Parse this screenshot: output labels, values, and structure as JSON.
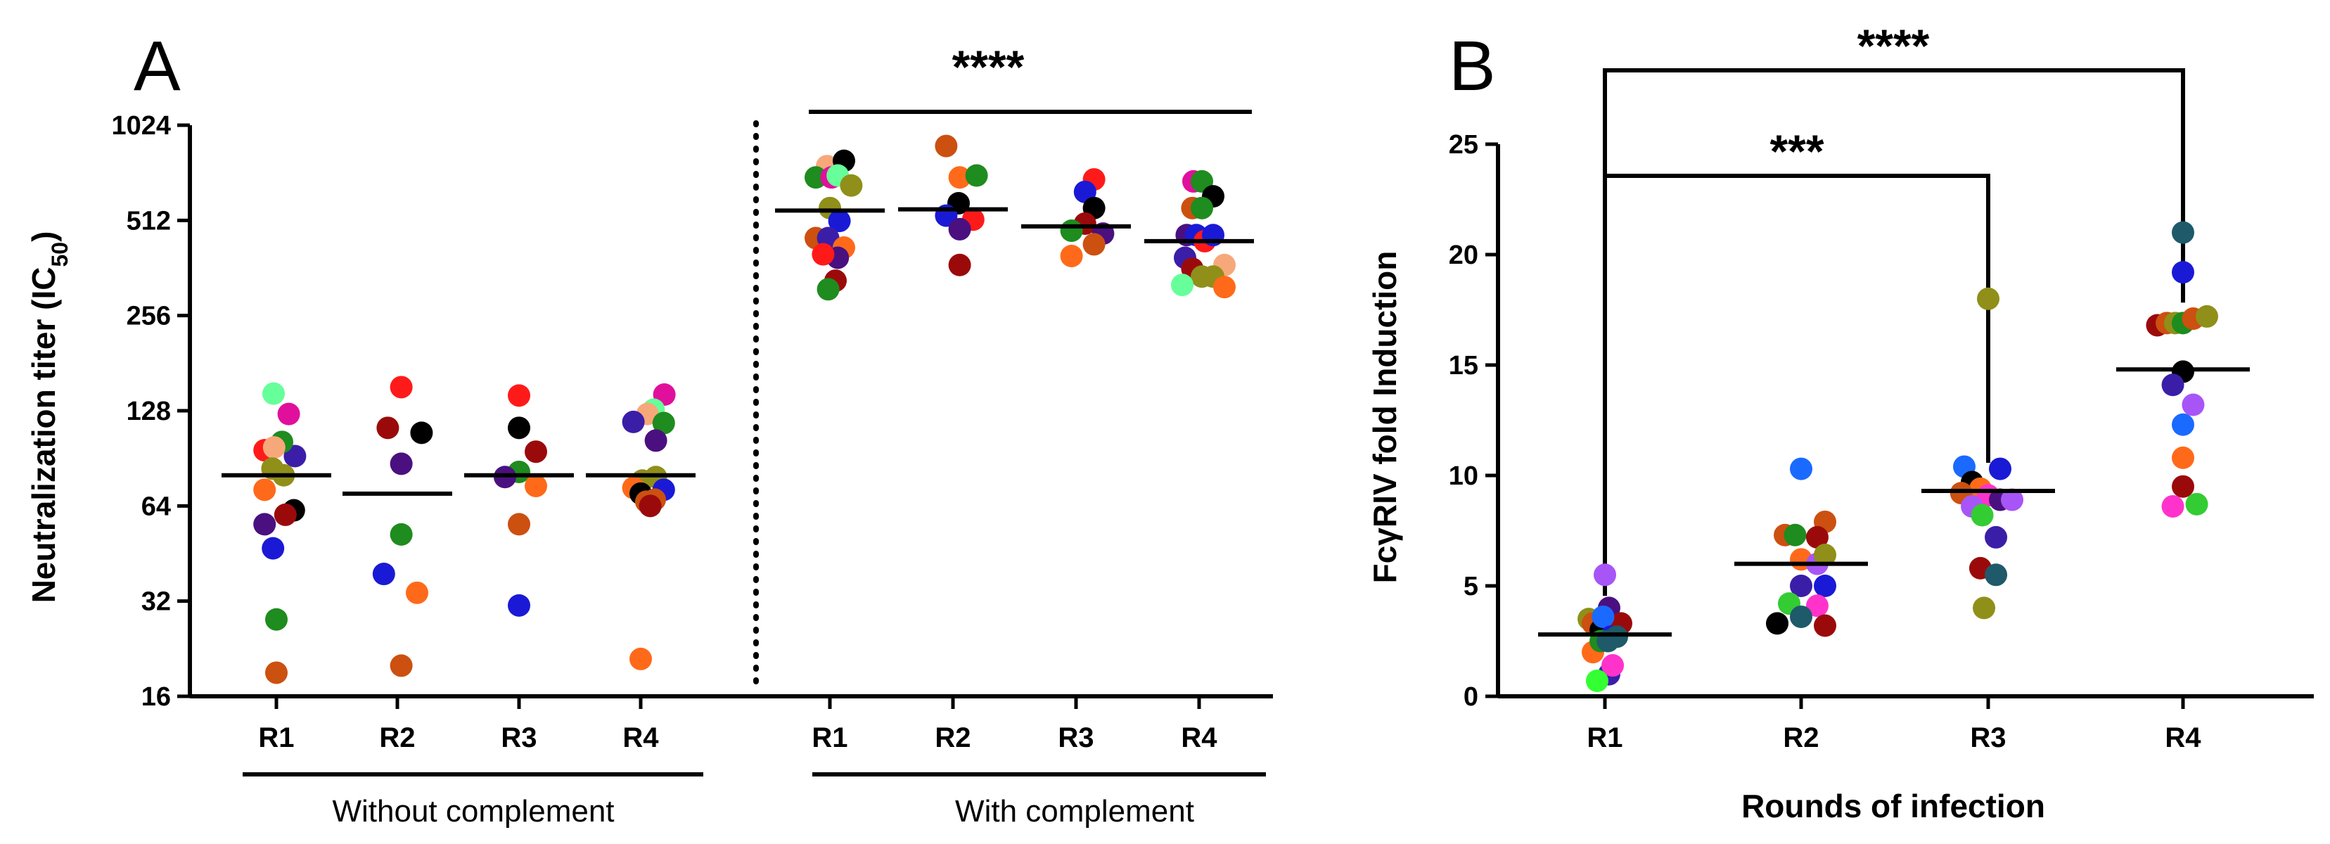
{
  "panels": {
    "a": {
      "letter": "A",
      "ylabel_main": "Neutralization titer  (IC",
      "ylabel_sub": "50",
      "ylabel_end": ")",
      "group_labels": [
        "Without complement",
        "With complement"
      ],
      "significance": "****"
    },
    "b": {
      "letter": "B",
      "ylabel": "FcγRIV fold Induction",
      "xlabel": "Rounds of infection",
      "significance": [
        "***",
        "****"
      ]
    }
  },
  "chart_data": [
    {
      "type": "scatter",
      "panel": "A",
      "scale": "log2",
      "ylim": [
        16,
        1024
      ],
      "yticks": [
        16,
        32,
        64,
        128,
        256,
        512,
        1024
      ],
      "ylabel": "Neutralization titer (IC50)",
      "categories": [
        "R1",
        "R2",
        "R3",
        "R4",
        "R1",
        "R2",
        "R3",
        "R4"
      ],
      "groups": [
        {
          "label": "Without complement",
          "categories": [
            0,
            1,
            2,
            3
          ]
        },
        {
          "label": "With complement",
          "categories": [
            4,
            5,
            6,
            7
          ]
        }
      ],
      "medians": [
        80,
        70,
        80,
        80,
        550,
        555,
        490,
        440
      ],
      "points": [
        [
          {
            "dx": -0.05,
            "y": 145,
            "color": "#66ff99"
          },
          {
            "dx": 0.22,
            "y": 125,
            "color": "#e0109c"
          },
          {
            "dx": 0.33,
            "y": 92,
            "color": "#3b1ea8"
          },
          {
            "dx": 0.1,
            "y": 102,
            "color": "#1e8c1e"
          },
          {
            "dx": -0.21,
            "y": 96,
            "color": "#ff1a1a"
          },
          {
            "dx": -0.04,
            "y": 98,
            "color": "#f7a87a"
          },
          {
            "dx": -0.07,
            "y": 84,
            "color": "#8f8f1a"
          },
          {
            "dx": 0.13,
            "y": 80,
            "color": "#8f8f1a"
          },
          {
            "dx": -0.21,
            "y": 72,
            "color": "#ff6a1a"
          },
          {
            "dx": 0.31,
            "y": 62,
            "color": "#000000"
          },
          {
            "dx": 0.16,
            "y": 60,
            "color": "#9b0a0a"
          },
          {
            "dx": -0.21,
            "y": 56,
            "color": "#4a1080"
          },
          {
            "dx": -0.06,
            "y": 47,
            "color": "#1a1ad6"
          },
          {
            "dx": 0.0,
            "y": 28,
            "color": "#1e8c1e"
          },
          {
            "dx": 0.0,
            "y": 19,
            "color": "#cc5010"
          }
        ],
        [
          {
            "dx": 0.07,
            "y": 152,
            "color": "#ff1a1a"
          },
          {
            "dx": -0.17,
            "y": 113,
            "color": "#9b0a0a"
          },
          {
            "dx": 0.43,
            "y": 109,
            "color": "#000000"
          },
          {
            "dx": 0.07,
            "y": 87,
            "color": "#4a1080"
          },
          {
            "dx": 0.07,
            "y": 52,
            "color": "#1e8c1e"
          },
          {
            "dx": -0.24,
            "y": 39,
            "color": "#1a1ad6"
          },
          {
            "dx": 0.35,
            "y": 34,
            "color": "#ff6a1a"
          },
          {
            "dx": 0.07,
            "y": 20,
            "color": "#cc5010"
          }
        ],
        [
          {
            "dx": 0.0,
            "y": 143,
            "color": "#ff1a1a"
          },
          {
            "dx": 0.0,
            "y": 113,
            "color": "#000000"
          },
          {
            "dx": 0.3,
            "y": 95,
            "color": "#9b0a0a"
          },
          {
            "dx": 0.0,
            "y": 82,
            "color": "#1e8c1e"
          },
          {
            "dx": -0.25,
            "y": 79,
            "color": "#4a1080"
          },
          {
            "dx": 0.3,
            "y": 74,
            "color": "#ff6a1a"
          },
          {
            "dx": 0.0,
            "y": 56,
            "color": "#cc5010"
          },
          {
            "dx": 0.0,
            "y": 31,
            "color": "#1a1ad6"
          }
        ],
        [
          {
            "dx": 0.42,
            "y": 144,
            "color": "#e0109c"
          },
          {
            "dx": 0.23,
            "y": 129,
            "color": "#66ff99"
          },
          {
            "dx": 0.12,
            "y": 125,
            "color": "#f7a87a"
          },
          {
            "dx": -0.13,
            "y": 118,
            "color": "#3b1ea8"
          },
          {
            "dx": 0.41,
            "y": 117,
            "color": "#1e8c1e"
          },
          {
            "dx": 0.27,
            "y": 103,
            "color": "#4a1080"
          },
          {
            "dx": 0.03,
            "y": 77,
            "color": "#8f8f1a"
          },
          {
            "dx": 0.27,
            "y": 79,
            "color": "#8f8f1a"
          },
          {
            "dx": -0.13,
            "y": 73,
            "color": "#ff6a1a"
          },
          {
            "dx": 0.41,
            "y": 72,
            "color": "#1a1ad6"
          },
          {
            "dx": 0.0,
            "y": 70,
            "color": "#000000"
          },
          {
            "dx": 0.1,
            "y": 66,
            "color": "#cc5010"
          },
          {
            "dx": 0.25,
            "y": 67,
            "color": "#cc5010"
          },
          {
            "dx": 0.17,
            "y": 64,
            "color": "#9b0a0a"
          },
          {
            "dx": 0.0,
            "y": 21,
            "color": "#ff6a1a"
          }
        ],
        [
          {
            "dx": -0.05,
            "y": 760,
            "color": "#f7a87a"
          },
          {
            "dx": 0.25,
            "y": 790,
            "color": "#000000"
          },
          {
            "dx": -0.25,
            "y": 700,
            "color": "#1e8c1e"
          },
          {
            "dx": 0.03,
            "y": 700,
            "color": "#e0109c"
          },
          {
            "dx": 0.14,
            "y": 710,
            "color": "#66ff99"
          },
          {
            "dx": 0.38,
            "y": 660,
            "color": "#8f8f1a"
          },
          {
            "dx": 0.0,
            "y": 560,
            "color": "#8f8f1a"
          },
          {
            "dx": 0.17,
            "y": 510,
            "color": "#1a1ad6"
          },
          {
            "dx": -0.25,
            "y": 450,
            "color": "#cc5010"
          },
          {
            "dx": -0.03,
            "y": 450,
            "color": "#3b1ea8"
          },
          {
            "dx": 0.25,
            "y": 420,
            "color": "#ff6a1a"
          },
          {
            "dx": 0.14,
            "y": 390,
            "color": "#4a1080"
          },
          {
            "dx": -0.12,
            "y": 400,
            "color": "#ff1a1a"
          },
          {
            "dx": 0.1,
            "y": 330,
            "color": "#9b0a0a"
          },
          {
            "dx": -0.03,
            "y": 310,
            "color": "#1e8c1e"
          }
        ],
        [
          {
            "dx": -0.12,
            "y": 880,
            "color": "#cc5010"
          },
          {
            "dx": 0.12,
            "y": 700,
            "color": "#ff6a1a"
          },
          {
            "dx": 0.42,
            "y": 710,
            "color": "#1e8c1e"
          },
          {
            "dx": 0.1,
            "y": 580,
            "color": "#000000"
          },
          {
            "dx": -0.12,
            "y": 530,
            "color": "#1a1ad6"
          },
          {
            "dx": 0.36,
            "y": 515,
            "color": "#ff1a1a"
          },
          {
            "dx": 0.12,
            "y": 480,
            "color": "#4a1080"
          },
          {
            "dx": 0.12,
            "y": 370,
            "color": "#9b0a0a"
          }
        ],
        [
          {
            "dx": 0.32,
            "y": 690,
            "color": "#ff1a1a"
          },
          {
            "dx": 0.16,
            "y": 630,
            "color": "#1a1ad6"
          },
          {
            "dx": 0.32,
            "y": 560,
            "color": "#000000"
          },
          {
            "dx": 0.16,
            "y": 500,
            "color": "#9b0a0a"
          },
          {
            "dx": -0.08,
            "y": 475,
            "color": "#1e8c1e"
          },
          {
            "dx": 0.48,
            "y": 465,
            "color": "#4a1080"
          },
          {
            "dx": 0.32,
            "y": 430,
            "color": "#cc5010"
          },
          {
            "dx": -0.08,
            "y": 395,
            "color": "#ff6a1a"
          }
        ],
        [
          {
            "dx": -0.1,
            "y": 680,
            "color": "#e0109c"
          },
          {
            "dx": 0.05,
            "y": 680,
            "color": "#1e8c1e"
          },
          {
            "dx": 0.25,
            "y": 610,
            "color": "#000000"
          },
          {
            "dx": -0.12,
            "y": 560,
            "color": "#cc5010"
          },
          {
            "dx": 0.05,
            "y": 560,
            "color": "#1e8c1e"
          },
          {
            "dx": -0.22,
            "y": 460,
            "color": "#4a1080"
          },
          {
            "dx": -0.05,
            "y": 460,
            "color": "#1a1ad6"
          },
          {
            "dx": 0.1,
            "y": 440,
            "color": "#ff1a1a"
          },
          {
            "dx": 0.25,
            "y": 460,
            "color": "#1a1ad6"
          },
          {
            "dx": -0.25,
            "y": 390,
            "color": "#3b1ea8"
          },
          {
            "dx": -0.12,
            "y": 360,
            "color": "#9b0a0a"
          },
          {
            "dx": 0.45,
            "y": 370,
            "color": "#f7a87a"
          },
          {
            "dx": 0.05,
            "y": 340,
            "color": "#8f8f1a"
          },
          {
            "dx": 0.25,
            "y": 340,
            "color": "#8f8f1a"
          },
          {
            "dx": -0.3,
            "y": 320,
            "color": "#66ff99"
          },
          {
            "dx": 0.45,
            "y": 315,
            "color": "#ff6a1a"
          }
        ]
      ]
    },
    {
      "type": "scatter",
      "panel": "B",
      "ylim": [
        0,
        25
      ],
      "yticks": [
        0,
        5,
        10,
        15,
        20,
        25
      ],
      "xlabel": "Rounds of infection",
      "ylabel": "FcγRIV fold Induction",
      "categories": [
        "R1",
        "R2",
        "R3",
        "R4"
      ],
      "medians": [
        2.8,
        6.0,
        9.3,
        14.8
      ],
      "comparisons": [
        {
          "from": "R1",
          "to": "R3",
          "label": "***"
        },
        {
          "from": "R1",
          "to": "R4",
          "label": "****"
        }
      ],
      "points": [
        [
          {
            "dx": 0.0,
            "y": 5.5,
            "color": "#a855f7"
          },
          {
            "dx": -0.27,
            "y": 3.5,
            "color": "#8f8f1a"
          },
          {
            "dx": -0.2,
            "y": 3.3,
            "color": "#cc5010"
          },
          {
            "dx": -0.07,
            "y": 3.0,
            "color": "#000000"
          },
          {
            "dx": 0.07,
            "y": 4.0,
            "color": "#4a1080"
          },
          {
            "dx": 0.27,
            "y": 3.3,
            "color": "#9b0a0a"
          },
          {
            "dx": -0.03,
            "y": 3.6,
            "color": "#1a6aff"
          },
          {
            "dx": 0.1,
            "y": 2.7,
            "color": "#1a1ad6"
          },
          {
            "dx": -0.2,
            "y": 2.0,
            "color": "#ff6a1a"
          },
          {
            "dx": -0.07,
            "y": 2.5,
            "color": "#1e8c1e"
          },
          {
            "dx": 0.05,
            "y": 2.5,
            "color": "#1e5a6a"
          },
          {
            "dx": 0.2,
            "y": 2.7,
            "color": "#1e5a6a"
          },
          {
            "dx": 0.07,
            "y": 1.0,
            "color": "#3b1ea8"
          },
          {
            "dx": 0.13,
            "y": 1.4,
            "color": "#ff33cc"
          },
          {
            "dx": -0.13,
            "y": 0.7,
            "color": "#33ff33"
          }
        ],
        [
          {
            "dx": 0.0,
            "y": 10.3,
            "color": "#1a6aff"
          },
          {
            "dx": 0.4,
            "y": 7.9,
            "color": "#cc5010"
          },
          {
            "dx": -0.27,
            "y": 7.3,
            "color": "#cc5010"
          },
          {
            "dx": -0.1,
            "y": 7.3,
            "color": "#1e8c1e"
          },
          {
            "dx": 0.27,
            "y": 7.2,
            "color": "#9b0a0a"
          },
          {
            "dx": 0.0,
            "y": 6.2,
            "color": "#ff6a1a"
          },
          {
            "dx": 0.27,
            "y": 6.0,
            "color": "#a855f7"
          },
          {
            "dx": 0.4,
            "y": 6.4,
            "color": "#8f8f1a"
          },
          {
            "dx": 0.0,
            "y": 5.0,
            "color": "#3b1ea8"
          },
          {
            "dx": 0.4,
            "y": 5.0,
            "color": "#1a1ad6"
          },
          {
            "dx": -0.2,
            "y": 4.2,
            "color": "#33cc33"
          },
          {
            "dx": 0.27,
            "y": 4.1,
            "color": "#ff33cc"
          },
          {
            "dx": 0.0,
            "y": 3.6,
            "color": "#1e5a6a"
          },
          {
            "dx": -0.4,
            "y": 3.3,
            "color": "#000000"
          },
          {
            "dx": 0.4,
            "y": 3.2,
            "color": "#9b0a0a"
          }
        ],
        [
          {
            "dx": 0.0,
            "y": 18.0,
            "color": "#8f8f1a"
          },
          {
            "dx": -0.4,
            "y": 10.4,
            "color": "#1a6aff"
          },
          {
            "dx": 0.2,
            "y": 10.3,
            "color": "#1a1ad6"
          },
          {
            "dx": -0.27,
            "y": 9.7,
            "color": "#000000"
          },
          {
            "dx": -0.13,
            "y": 9.4,
            "color": "#ff6a1a"
          },
          {
            "dx": -0.45,
            "y": 9.2,
            "color": "#cc5010"
          },
          {
            "dx": 0.0,
            "y": 9.1,
            "color": "#ff33cc"
          },
          {
            "dx": 0.2,
            "y": 8.9,
            "color": "#4a1080"
          },
          {
            "dx": 0.4,
            "y": 8.9,
            "color": "#a855f7"
          },
          {
            "dx": -0.27,
            "y": 8.6,
            "color": "#a855f7"
          },
          {
            "dx": -0.1,
            "y": 8.2,
            "color": "#33cc33"
          },
          {
            "dx": 0.13,
            "y": 7.2,
            "color": "#3b1ea8"
          },
          {
            "dx": -0.13,
            "y": 5.8,
            "color": "#9b0a0a"
          },
          {
            "dx": 0.13,
            "y": 5.5,
            "color": "#1e5a6a"
          },
          {
            "dx": -0.07,
            "y": 4.0,
            "color": "#8f8f1a"
          }
        ],
        [
          {
            "dx": 0.0,
            "y": 21.0,
            "color": "#1e5a6a"
          },
          {
            "dx": 0.0,
            "y": 19.2,
            "color": "#1a1ad6"
          },
          {
            "dx": -0.43,
            "y": 16.8,
            "color": "#9b0a0a"
          },
          {
            "dx": -0.27,
            "y": 16.9,
            "color": "#cc5010"
          },
          {
            "dx": -0.13,
            "y": 16.9,
            "color": "#8f8f1a"
          },
          {
            "dx": 0.0,
            "y": 16.9,
            "color": "#1e8c1e"
          },
          {
            "dx": 0.17,
            "y": 17.1,
            "color": "#cc5010"
          },
          {
            "dx": 0.4,
            "y": 17.2,
            "color": "#8f8f1a"
          },
          {
            "dx": 0.0,
            "y": 14.7,
            "color": "#000000"
          },
          {
            "dx": -0.17,
            "y": 14.1,
            "color": "#3b1ea8"
          },
          {
            "dx": 0.17,
            "y": 13.2,
            "color": "#a855f7"
          },
          {
            "dx": 0.0,
            "y": 12.3,
            "color": "#1a6aff"
          },
          {
            "dx": 0.0,
            "y": 10.8,
            "color": "#ff6a1a"
          },
          {
            "dx": 0.0,
            "y": 9.5,
            "color": "#9b0a0a"
          },
          {
            "dx": -0.17,
            "y": 8.6,
            "color": "#ff33cc"
          },
          {
            "dx": 0.23,
            "y": 8.7,
            "color": "#33cc33"
          }
        ]
      ]
    }
  ]
}
